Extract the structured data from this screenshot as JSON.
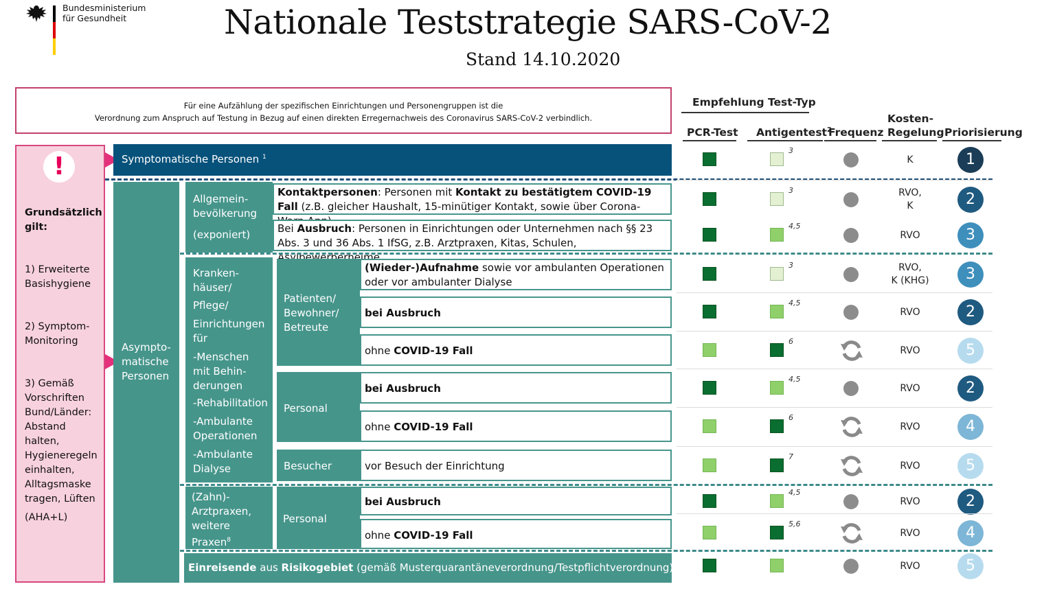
{
  "header": {
    "title": "Nationale Teststrategie SARS-CoV-2",
    "subtitle": "Stand 14.10.2020",
    "ministry_line1": "Bundesministerium",
    "ministry_line2": "für Gesundheit"
  },
  "colors": {
    "accent_pink": "#d8467f",
    "teal": "#46958b",
    "navy": "#07527b",
    "dark_green": "#0a6e31",
    "light_green": "#8fd06b",
    "pale_green": "#e3f0d2"
  },
  "icons": {
    "logo": "federal-eagle-icon",
    "alert": "exclamation-icon",
    "frequency": "dot-icon / cycle-icon"
  },
  "intro": {
    "line1": "Für eine Aufzählung der spezifischen Einrichtungen und Personengruppen ist die",
    "line2": "Verordnung zum Anspruch auf Testung in Bezug auf einen direkten Erregernachweis des Coronavirus SARS-CoV-2 verbindlich."
  },
  "columns": {
    "group": "Empfehlung Test-Typ",
    "pcr": "PCR-Test",
    "antigen": "Antigentest",
    "antigen_sup": "2",
    "frequency": "Frequenz",
    "cost": "Kosten-Regelung",
    "cost_l1": "Kosten-",
    "cost_l2": "Regelung",
    "priority": "Priorisierung"
  },
  "left_panel": {
    "heading": "Grundsätzlich gilt:",
    "item1": "1) Erweiterte Basishygiene",
    "item2": "2) Symptom-Monitoring",
    "item3": "3) Gemäß Vorschriften Bund/Länder: Abstand halten, Hygieneregeln einhalten, Alltagsmaske tragen, Lüften",
    "item4": "(AHA+L)"
  },
  "groups": {
    "symptomatic": "Symptomatische Personen",
    "symptomatic_sup": "1",
    "asymptomatic": "Asympto-matische Personen",
    "general_l1": "Allgemein-bevölkerung",
    "general_l2": "(exponiert)",
    "hospitals_l1": "Kranken-häuser/",
    "hospitals_l2": "Pflege/",
    "hospitals_l3": "Einrichtungen für",
    "hospitals_l4": "-Menschen mit Behin-derungen",
    "hospitals_l5": "-Rehabilitation",
    "hospitals_l6": "-Ambulante Operationen",
    "hospitals_l7": "-Ambulante Dialyse",
    "patients": "Patienten/ Bewohner/ Betreute",
    "staff": "Personal",
    "visitors": "Besucher",
    "practices": "(Zahn)-Arztpraxen, weitere Praxen",
    "practices_sup": "8",
    "practice_staff": "Personal",
    "travellers_bold": "Einreisende",
    "travellers_rest": " aus ",
    "travellers_bold2": "Risikogebiet",
    "travellers_tail": " (gemäß Musterquarantäneverordnung/Testpflichtverordnung)"
  },
  "rows": [
    {
      "b1": "Kontaktpersonen",
      "t1": ": Personen mit ",
      "b2": "Kontakt zu bestätigtem COVID-19 Fall",
      "t2": " (z.B. gleicher Haushalt, 15-minütiger Kontakt, sowie über Corona-Warn-App)"
    },
    {
      "t0": "Bei ",
      "b1": "Ausbruch",
      "t1": ": Personen in Einrichtungen oder Unternehmen nach §§ 23 Abs. 3 und 36 Abs. 1 IfSG, z.B. Arztpraxen, Kitas, Schulen, Asylbewerberheime"
    },
    {
      "b1": "(Wieder-)Aufnahme",
      "t1": " sowie vor ambulanten Operationen oder vor ambulanter Dialyse"
    },
    {
      "b1": "bei Ausbruch"
    },
    {
      "t0": "ohne ",
      "b1": "COVID-19 Fall"
    },
    {
      "b1": "bei Ausbruch"
    },
    {
      "t0": "ohne ",
      "b1": "COVID-19 Fall"
    },
    {
      "t0": "vor Besuch der Einrichtung"
    },
    {
      "b1": "bei Ausbruch"
    },
    {
      "t0": "ohne ",
      "b1": "COVID-19 Fall"
    }
  ],
  "matrix": [
    {
      "pcr": "dark",
      "antigen": "pale",
      "sup": "3",
      "freq": "dot",
      "cost": "K",
      "prio": "1"
    },
    {
      "pcr": "dark",
      "antigen": "pale",
      "sup": "3",
      "freq": "dot",
      "cost": "RVO, K",
      "prio": "2"
    },
    {
      "pcr": "dark",
      "antigen": "light",
      "sup": "4,5",
      "freq": "dot",
      "cost": "RVO",
      "prio": "3"
    },
    {
      "pcr": "dark",
      "antigen": "pale",
      "sup": "3",
      "freq": "dot",
      "cost": "RVO, K (KHG)",
      "prio": "3"
    },
    {
      "pcr": "dark",
      "antigen": "light",
      "sup": "4,5",
      "freq": "dot",
      "cost": "RVO",
      "prio": "2"
    },
    {
      "pcr": "light",
      "antigen": "dark",
      "sup": "6",
      "freq": "cycle",
      "cost": "RVO",
      "prio": "5"
    },
    {
      "pcr": "dark",
      "antigen": "light",
      "sup": "4,5",
      "freq": "dot",
      "cost": "RVO",
      "prio": "2"
    },
    {
      "pcr": "light",
      "antigen": "dark",
      "sup": "6",
      "freq": "cycle",
      "cost": "RVO",
      "prio": "4"
    },
    {
      "pcr": "light",
      "antigen": "dark",
      "sup": "7",
      "freq": "cycle",
      "cost": "RVO",
      "prio": "5"
    },
    {
      "pcr": "dark",
      "antigen": "light",
      "sup": "4,5",
      "freq": "dot",
      "cost": "RVO",
      "prio": "2"
    },
    {
      "pcr": "light",
      "antigen": "dark",
      "sup": "5,6",
      "freq": "cycle",
      "cost": "RVO",
      "prio": "4"
    },
    {
      "pcr": "dark",
      "antigen": "light",
      "sup": "",
      "freq": "dot",
      "cost": "RVO",
      "prio": "5"
    }
  ],
  "cost_lines": {
    "r1a": "RVO,",
    "r1b": "K",
    "r3a": "RVO,",
    "r3b": "K (KHG)"
  }
}
